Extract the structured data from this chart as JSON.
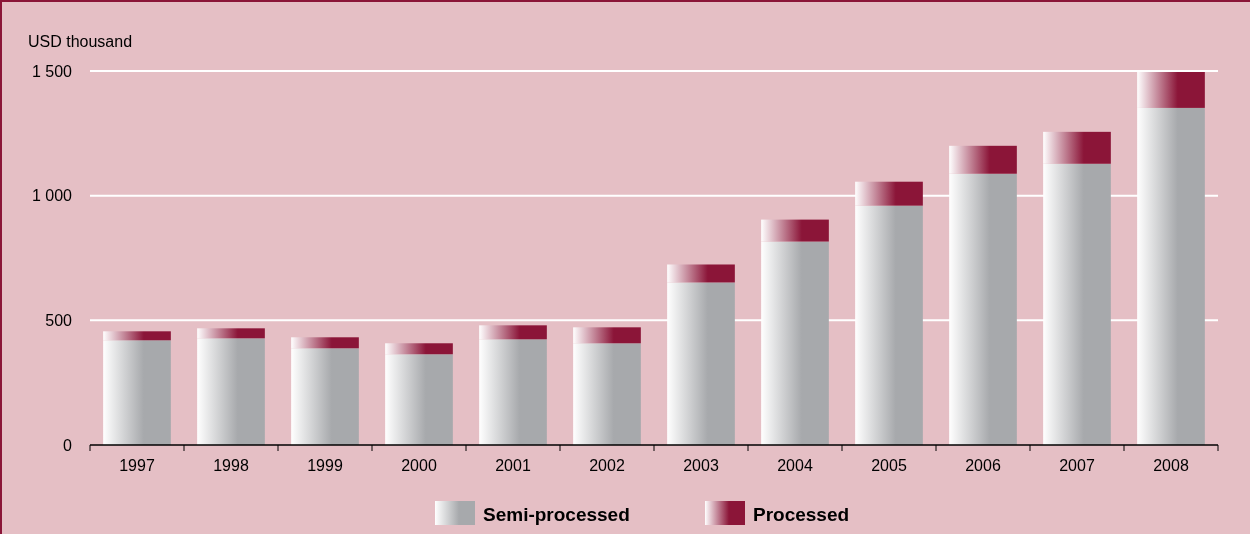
{
  "chart_data": {
    "type": "bar",
    "ylabel": "USD thousand",
    "categories": [
      "1997",
      "1998",
      "1999",
      "2000",
      "2001",
      "2002",
      "2003",
      "2004",
      "2005",
      "2006",
      "2007",
      "2008"
    ],
    "series": [
      {
        "name": "Semi-processed",
        "color": "#a7a9ac",
        "values": [
          420,
          428,
          388,
          364,
          424,
          408,
          652,
          816,
          960,
          1088,
          1128,
          1352
        ]
      },
      {
        "name": "Processed",
        "color": "#8b1538",
        "values": [
          36,
          40,
          44,
          44,
          56,
          64,
          72,
          88,
          96,
          112,
          128,
          144
        ]
      }
    ],
    "stacked": true,
    "ylim": [
      0,
      1500
    ],
    "yticks": [
      0,
      500,
      {
        "value": 1000,
        "label": "1 000"
      },
      {
        "value": 1500,
        "label": "1 500"
      }
    ],
    "grid": "y",
    "legend": "bottom"
  }
}
